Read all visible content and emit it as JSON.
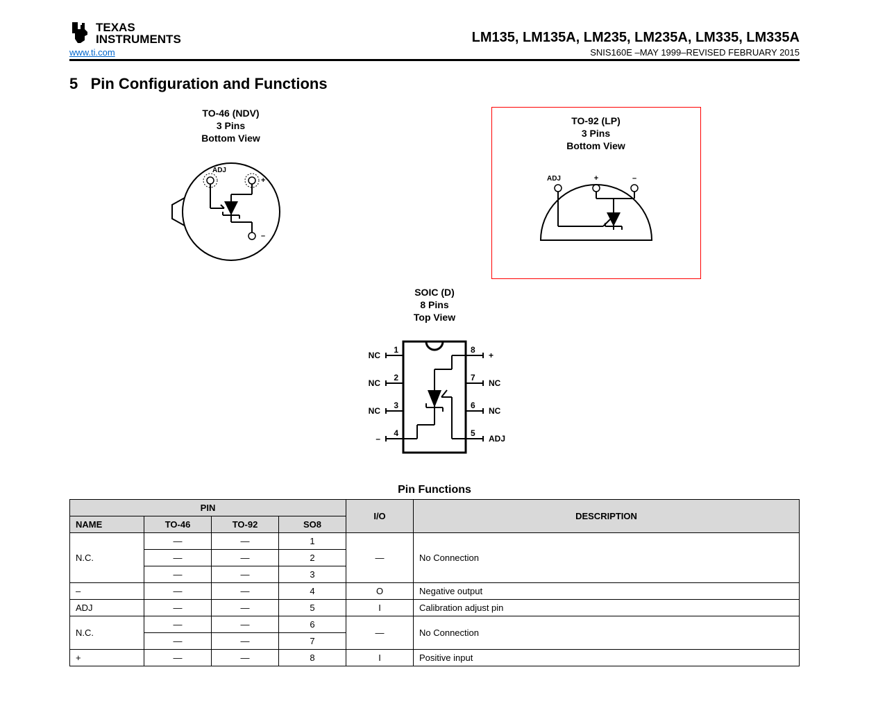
{
  "header": {
    "company_top": "TEXAS",
    "company_bottom": "INSTRUMENTS",
    "url": "www.ti.com",
    "product_line": "LM135, LM135A, LM235, LM235A, LM335, LM335A",
    "doc_rev": "SNIS160E –MAY 1999–REVISED FEBRUARY 2015"
  },
  "section": {
    "number": "5",
    "title": "Pin Configuration and Functions"
  },
  "packages": {
    "to46": {
      "name": "TO-46 (NDV)",
      "pins": "3 Pins",
      "view": "Bottom View"
    },
    "to92": {
      "name": "TO-92 (LP)",
      "pins": "3 Pins",
      "view": "Bottom View"
    },
    "soic": {
      "name": "SOIC (D)",
      "pins": "8 Pins",
      "view": "Top View"
    }
  },
  "pin_labels": {
    "adj": "ADJ",
    "plus": "+",
    "minus": "–",
    "nc": "NC"
  },
  "soic_pins": {
    "p1": "1",
    "p2": "2",
    "p3": "3",
    "p4": "4",
    "p5": "5",
    "p6": "6",
    "p7": "7",
    "p8": "8",
    "l1": "NC",
    "l2": "NC",
    "l3": "NC",
    "l4": "–",
    "r5": "ADJ",
    "r6": "NC",
    "r7": "NC",
    "r8": "+"
  },
  "table": {
    "title": "Pin Functions",
    "headers": {
      "pin": "PIN",
      "name": "NAME",
      "to46": "TO-46",
      "to92": "TO-92",
      "so8": "SO8",
      "io": "I/O",
      "desc": "DESCRIPTION"
    },
    "rows": [
      {
        "name": "N.C.",
        "to46": [
          "—",
          "—",
          "—"
        ],
        "to92": [
          "—",
          "—",
          "—"
        ],
        "so8": [
          "1",
          "2",
          "3"
        ],
        "io": "—",
        "desc": "No Connection",
        "span": 3
      },
      {
        "name": "–",
        "to46": [
          "—"
        ],
        "to92": [
          "—"
        ],
        "so8": [
          "4"
        ],
        "io": "O",
        "desc": "Negative output",
        "span": 1
      },
      {
        "name": "ADJ",
        "to46": [
          "—"
        ],
        "to92": [
          "—"
        ],
        "so8": [
          "5"
        ],
        "io": "I",
        "desc": "Calibration adjust pin",
        "span": 1
      },
      {
        "name": "N.C.",
        "to46": [
          "—",
          "—"
        ],
        "to92": [
          "—",
          "—"
        ],
        "so8": [
          "6",
          "7"
        ],
        "io": "—",
        "desc": "No Connection",
        "span": 2
      },
      {
        "name": "+",
        "to46": [
          "—"
        ],
        "to92": [
          "—"
        ],
        "so8": [
          "8"
        ],
        "io": "I",
        "desc": "Positive input",
        "span": 1
      }
    ]
  },
  "colors": {
    "highlight_box": "#ff0000",
    "header_bg": "#d9d9d9",
    "link": "#0066cc",
    "text": "#000000",
    "bg": "#ffffff"
  }
}
